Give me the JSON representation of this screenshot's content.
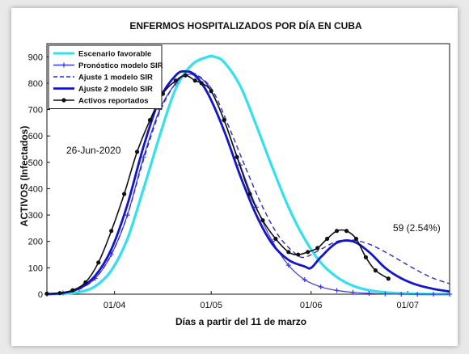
{
  "chart_data": {
    "type": "line",
    "title": "ENFERMOS HOSPITALIZADOS POR DÍA EN CUBA",
    "xlabel": "Días a partir del 11 de marzo",
    "ylabel": "ACTIVOS  (Infectados)",
    "annotation_date": "26-Jun-2020",
    "annotation_final": "59 (2.54%)",
    "xlim": [
      0,
      125
    ],
    "ylim": [
      0,
      950
    ],
    "yticks": [
      0,
      100,
      200,
      300,
      400,
      500,
      600,
      700,
      800,
      900
    ],
    "xticks": [
      {
        "day": 21,
        "label": "01/04"
      },
      {
        "day": 51,
        "label": "01/05"
      },
      {
        "day": 82,
        "label": "01/06"
      },
      {
        "day": 112,
        "label": "01/07"
      }
    ],
    "grid": false,
    "legend_position": "top-left",
    "series": [
      {
        "name": "Escenario favorable",
        "color": "#33e0ee",
        "style": "solid",
        "x": [
          0,
          5,
          10,
          15,
          20,
          25,
          30,
          35,
          40,
          45,
          50,
          52,
          55,
          60,
          65,
          70,
          75,
          80,
          85,
          90,
          95,
          100,
          105,
          110,
          115,
          120,
          125
        ],
        "y": [
          0,
          2,
          8,
          30,
          90,
          210,
          400,
          600,
          780,
          870,
          900,
          900,
          880,
          790,
          640,
          480,
          330,
          210,
          120,
          65,
          32,
          15,
          7,
          3,
          1,
          0,
          0
        ]
      },
      {
        "name": "Pronóstico modelo SIR",
        "color": "#3a3ad6",
        "style": "plus-markers",
        "x": [
          0,
          5,
          10,
          15,
          20,
          25,
          30,
          35,
          40,
          43,
          46,
          50,
          55,
          60,
          65,
          70,
          75,
          80,
          85,
          90,
          95,
          100,
          105,
          110,
          115,
          120,
          125
        ],
        "y": [
          0,
          5,
          20,
          60,
          150,
          300,
          520,
          700,
          800,
          830,
          830,
          790,
          660,
          490,
          330,
          200,
          110,
          55,
          28,
          14,
          7,
          3,
          1,
          0,
          0,
          0,
          0
        ]
      },
      {
        "name": "Ajuste 1 modelo SIR",
        "color": "#2a2ad0",
        "style": "dashed",
        "x": [
          0,
          5,
          10,
          15,
          20,
          25,
          30,
          35,
          40,
          44,
          48,
          52,
          57,
          62,
          67,
          72,
          77,
          80,
          85,
          90,
          95,
          100,
          105,
          110,
          115,
          120,
          125
        ],
        "y": [
          0,
          5,
          20,
          60,
          150,
          300,
          510,
          690,
          800,
          835,
          820,
          760,
          620,
          470,
          330,
          220,
          155,
          140,
          170,
          200,
          205,
          190,
          160,
          125,
          90,
          60,
          40
        ]
      },
      {
        "name": "Ajuste 2 modelo SIR",
        "color": "#1414c8",
        "style": "solid-thick",
        "x": [
          0,
          5,
          10,
          15,
          20,
          25,
          30,
          35,
          40,
          43,
          46,
          50,
          55,
          60,
          65,
          70,
          75,
          80,
          82,
          85,
          90,
          95,
          100,
          105,
          110,
          115,
          120,
          125
        ],
        "y": [
          0,
          5,
          22,
          70,
          170,
          340,
          560,
          740,
          830,
          845,
          830,
          760,
          620,
          450,
          300,
          190,
          130,
          105,
          100,
          140,
          195,
          200,
          160,
          100,
          60,
          35,
          20,
          10
        ]
      },
      {
        "name": "Activos reportados",
        "color": "#111111",
        "style": "dot-markers",
        "x": [
          0,
          4,
          8,
          12,
          16,
          20,
          24,
          28,
          32,
          36,
          40,
          43,
          46,
          48,
          51,
          55,
          59,
          63,
          67,
          71,
          75,
          78,
          81,
          84,
          87,
          90,
          93,
          96,
          99,
          102,
          106
        ],
        "y": [
          2,
          4,
          15,
          45,
          120,
          240,
          380,
          540,
          660,
          760,
          810,
          830,
          810,
          800,
          770,
          660,
          520,
          380,
          280,
          210,
          160,
          150,
          160,
          175,
          210,
          240,
          240,
          210,
          140,
          90,
          59
        ]
      }
    ]
  }
}
